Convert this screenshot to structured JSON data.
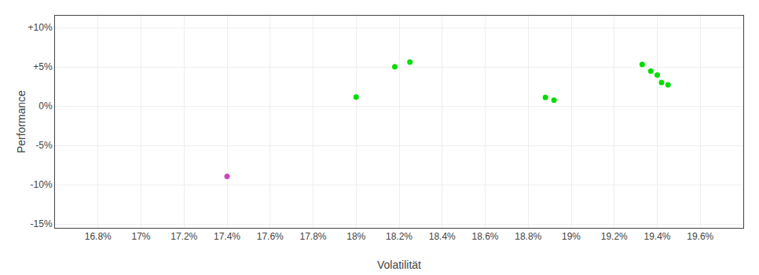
{
  "chart_data": {
    "type": "scatter",
    "xlabel": "Volatilität",
    "ylabel": "Performance",
    "series": [
      {
        "color": "#00dd00",
        "x": [
          0.18,
          0.1818,
          0.1825,
          0.1888,
          0.1892,
          0.1933,
          0.1937,
          0.194,
          0.1942,
          0.1945
        ],
        "values": [
          0.0115,
          0.05,
          0.056,
          0.011,
          0.0075,
          0.053,
          0.0445,
          0.0395,
          0.03,
          0.027
        ]
      },
      {
        "color": "#cc44bb",
        "x": [
          0.174
        ],
        "values": [
          -0.0895
        ]
      }
    ],
    "xlim": [
      0.166,
      0.198
    ],
    "ylim": [
      -0.155,
      0.115
    ],
    "xticks": [
      {
        "value": 0.168,
        "label": "16.8%"
      },
      {
        "value": 0.17,
        "label": "17%"
      },
      {
        "value": 0.172,
        "label": "17.2%"
      },
      {
        "value": 0.174,
        "label": "17.4%"
      },
      {
        "value": 0.176,
        "label": "17.6%"
      },
      {
        "value": 0.178,
        "label": "17.8%"
      },
      {
        "value": 0.18,
        "label": "18%"
      },
      {
        "value": 0.182,
        "label": "18.2%"
      },
      {
        "value": 0.184,
        "label": "18.4%"
      },
      {
        "value": 0.186,
        "label": "18.6%"
      },
      {
        "value": 0.188,
        "label": "18.8%"
      },
      {
        "value": 0.19,
        "label": "19%"
      },
      {
        "value": 0.192,
        "label": "19.2%"
      },
      {
        "value": 0.194,
        "label": "19.4%"
      },
      {
        "value": 0.196,
        "label": "19.6%"
      }
    ],
    "yticks": [
      {
        "value": 0.1,
        "label": "+10%"
      },
      {
        "value": 0.05,
        "label": "+5%"
      },
      {
        "value": 0.0,
        "label": "0%"
      },
      {
        "value": -0.05,
        "label": "-5%"
      },
      {
        "value": -0.1,
        "label": "-10%"
      },
      {
        "value": -0.15,
        "label": "-15%"
      }
    ],
    "grid": true
  }
}
